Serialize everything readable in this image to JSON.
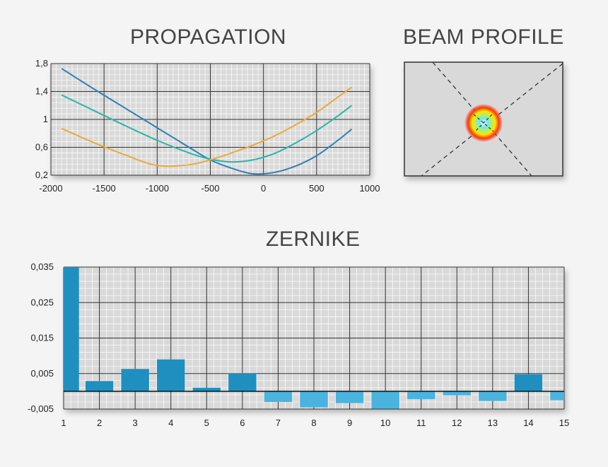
{
  "titles": {
    "propagation": "PROPAGATION",
    "beam_profile": "BEAM PROFILE",
    "zernike": "ZERNIKE"
  },
  "colors": {
    "grid_bg": "#d9d9d9",
    "grid_minor": "#ffffff",
    "grid_major": "#333333",
    "series": [
      "#2f7fb5",
      "#2bb5a8",
      "#eba93a"
    ],
    "bar_positive": "#1f8fc0",
    "bar_negative": "#4ab3de"
  },
  "chart_data": [
    {
      "type": "line",
      "title": "PROPAGATION",
      "xlim": [
        -2000,
        1000
      ],
      "ylim": [
        0.2,
        1.8
      ],
      "x_ticks": [
        "-2000",
        "-1500",
        "-1000",
        "-500",
        "0",
        "500",
        "1000"
      ],
      "y_ticks": [
        "1,8",
        "1,4",
        "1",
        "0,6",
        "0,2"
      ],
      "grid": true,
      "series": [
        {
          "x": [
            -1900,
            -1600,
            -1300,
            -1000,
            -700,
            -500,
            -300,
            -100,
            100,
            300,
            500,
            700,
            830
          ],
          "y": [
            1.73,
            1.44,
            1.16,
            0.88,
            0.6,
            0.42,
            0.3,
            0.22,
            0.24,
            0.33,
            0.48,
            0.7,
            0.86
          ]
        },
        {
          "x": [
            -1900,
            -1600,
            -1300,
            -1000,
            -700,
            -500,
            -300,
            -100,
            100,
            300,
            500,
            700,
            830
          ],
          "y": [
            1.35,
            1.13,
            0.91,
            0.7,
            0.52,
            0.43,
            0.39,
            0.42,
            0.51,
            0.66,
            0.84,
            1.05,
            1.2
          ]
        },
        {
          "x": [
            -1900,
            -1600,
            -1300,
            -1000,
            -700,
            -500,
            -300,
            -100,
            100,
            300,
            500,
            700,
            830
          ],
          "y": [
            0.87,
            0.67,
            0.49,
            0.34,
            0.35,
            0.42,
            0.52,
            0.63,
            0.76,
            0.92,
            1.1,
            1.32,
            1.46
          ]
        }
      ]
    },
    {
      "type": "bar",
      "title": "ZERNIKE",
      "categories": [
        "1",
        "2",
        "3",
        "4",
        "5",
        "6",
        "7",
        "8",
        "9",
        "10",
        "11",
        "12",
        "13",
        "14",
        "15"
      ],
      "values": [
        0.035,
        0.0029,
        0.0063,
        0.009,
        0.001,
        0.0051,
        -0.003,
        -0.0045,
        -0.0033,
        -0.0049,
        -0.0022,
        -0.0011,
        -0.0027,
        0.0048,
        -0.0025
      ],
      "ylim": [
        -0.005,
        0.035
      ],
      "y_ticks": [
        "0,035",
        "0,025",
        "0,015",
        "0,005",
        "-0,005"
      ],
      "grid": true
    }
  ]
}
